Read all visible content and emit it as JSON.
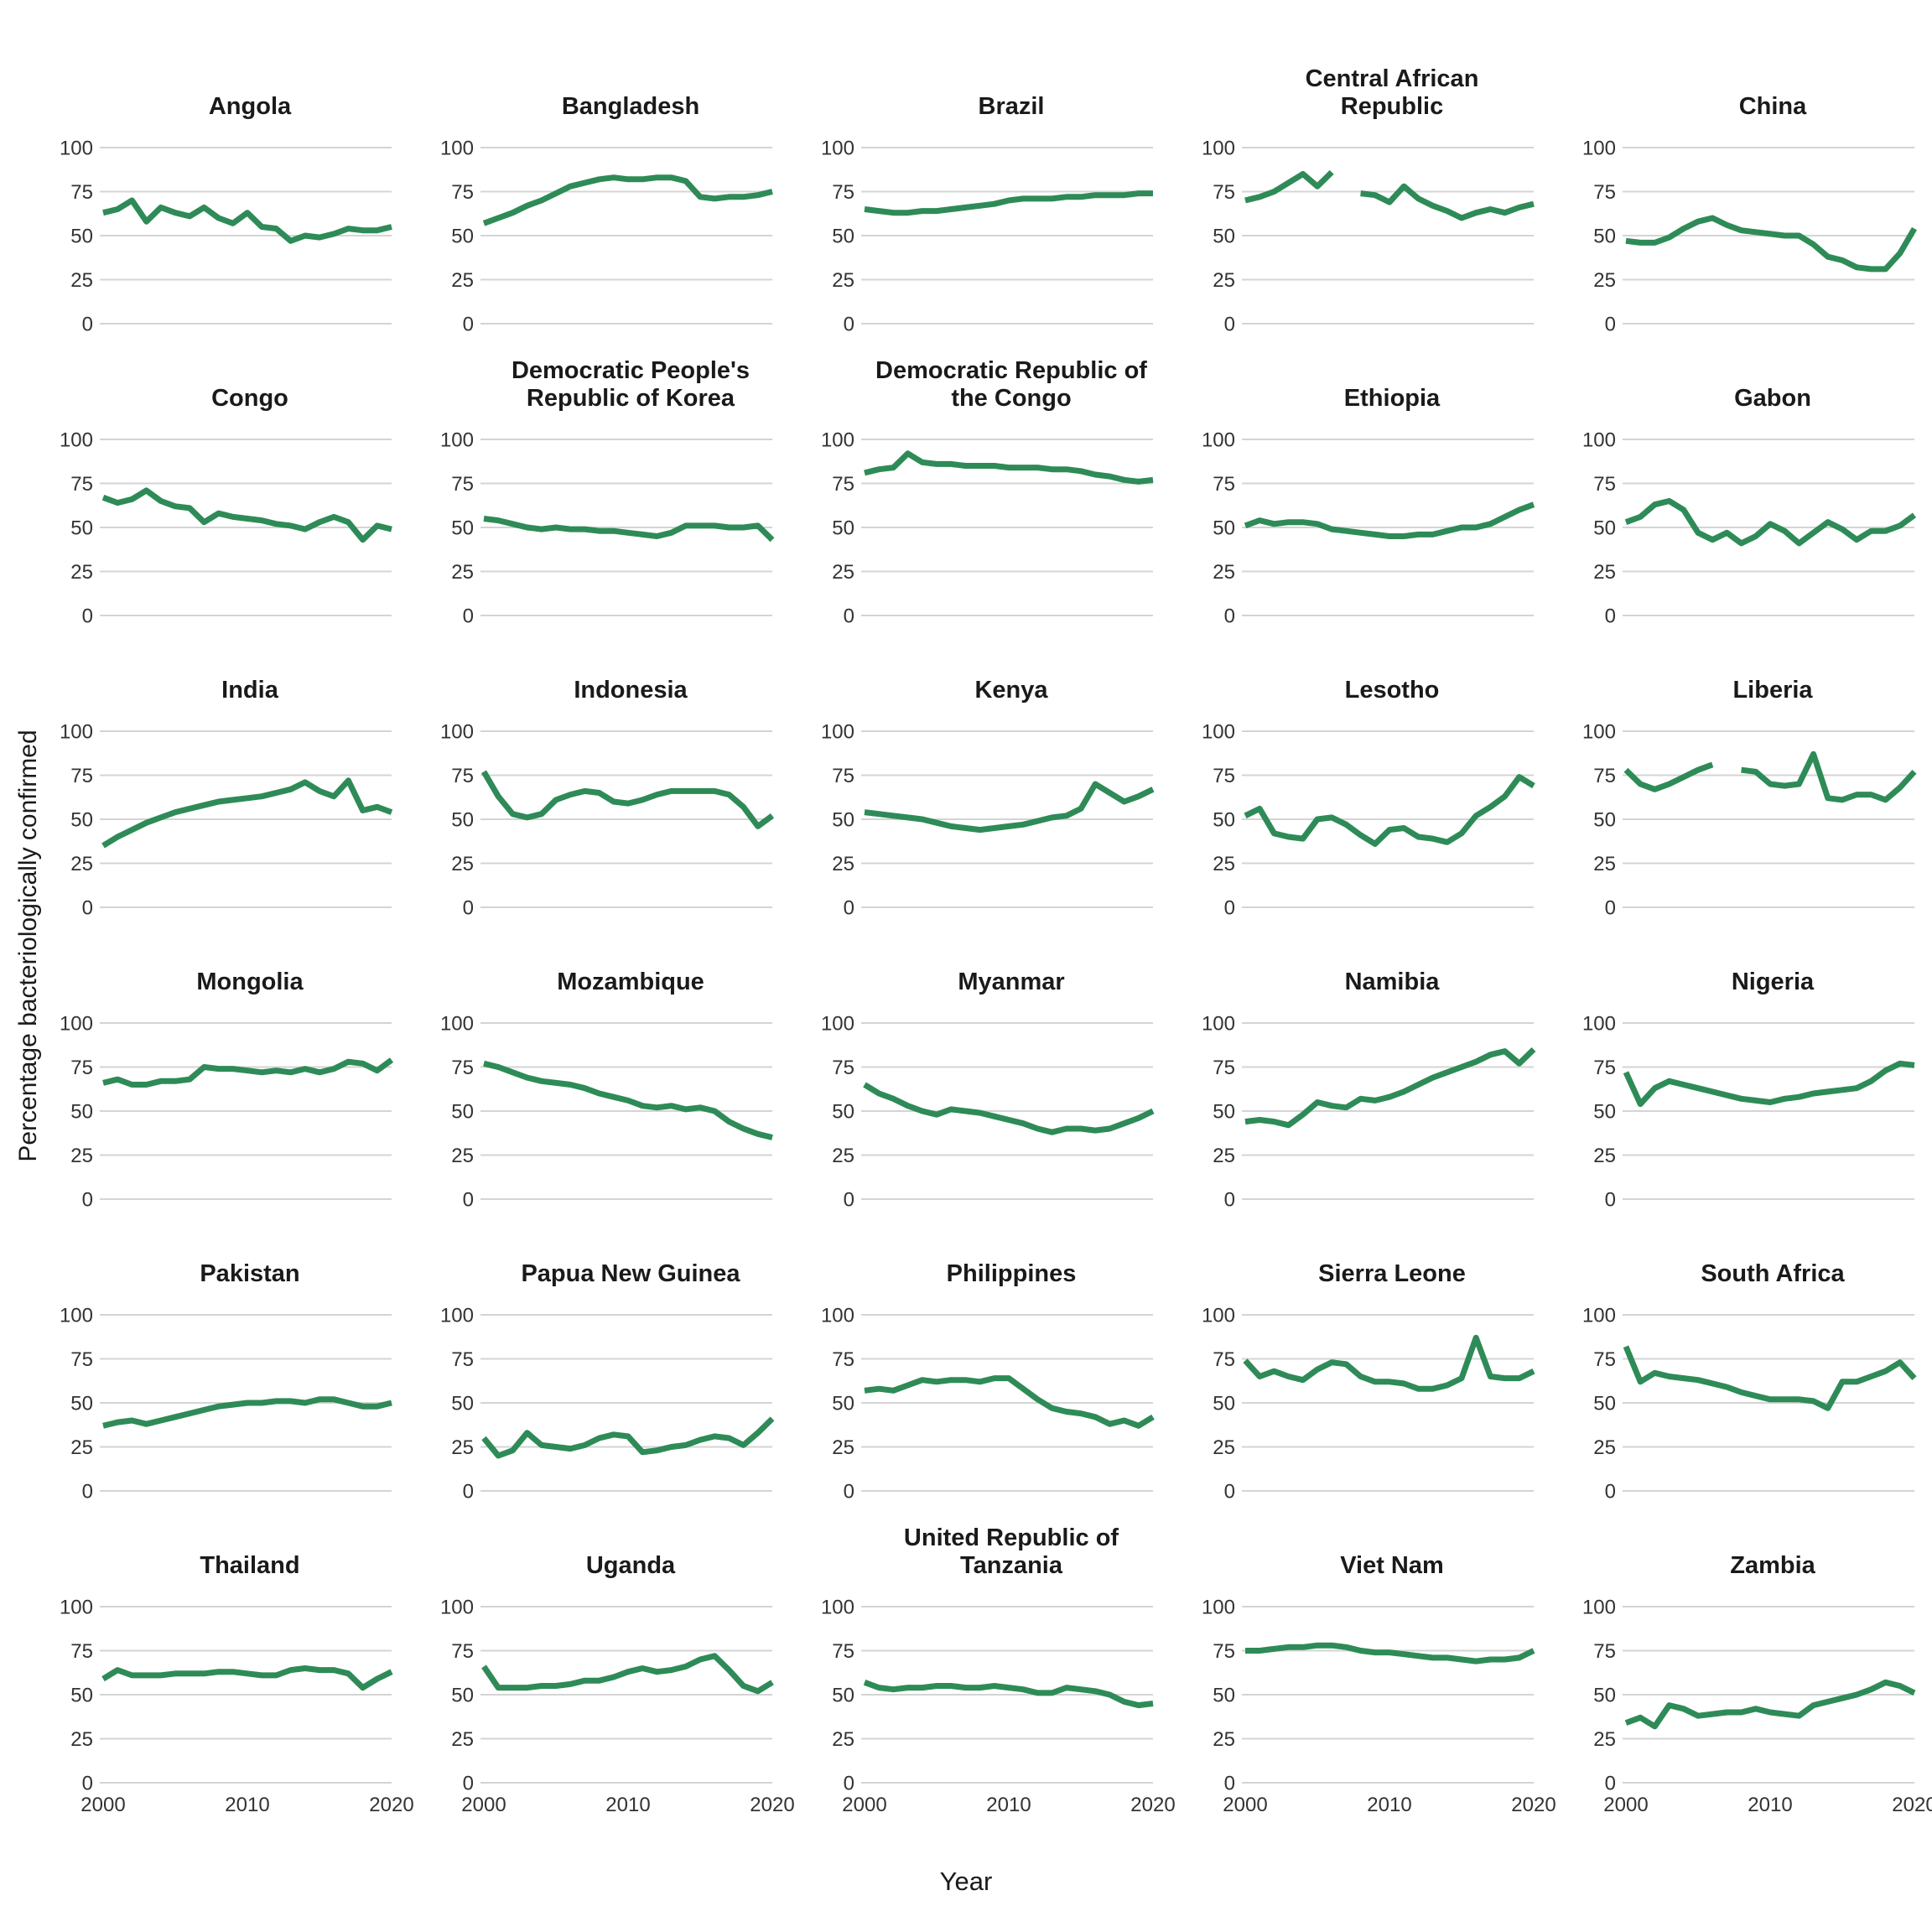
{
  "chart_data": {
    "type": "line",
    "title": "",
    "xlabel": "Year",
    "ylabel": "Percentage bacteriologically confirmed",
    "x": [
      2000,
      2001,
      2002,
      2003,
      2004,
      2005,
      2006,
      2007,
      2008,
      2009,
      2010,
      2011,
      2012,
      2013,
      2014,
      2015,
      2016,
      2017,
      2018,
      2019,
      2020
    ],
    "x_tick_labels": [
      "2000",
      "2010",
      "2020"
    ],
    "x_tick_years": [
      2000,
      2010,
      2020
    ],
    "y_tick_labels": [
      "0",
      "25",
      "50",
      "75",
      "100"
    ],
    "y_ticks": [
      0,
      25,
      50,
      75,
      100
    ],
    "ylim": [
      0,
      100
    ],
    "grid": "horizontal-only",
    "legend": "none",
    "line_color": "#2e8b57",
    "gridline_color": "#d4d4d4",
    "layout": {
      "nrow": 6,
      "ncol": 5
    },
    "facets": [
      {
        "name": "Angola",
        "values": [
          63,
          65,
          70,
          58,
          66,
          63,
          61,
          66,
          60,
          57,
          63,
          55,
          54,
          47,
          50,
          49,
          51,
          54,
          53,
          53,
          55
        ]
      },
      {
        "name": "Bangladesh",
        "values": [
          57,
          60,
          63,
          67,
          70,
          74,
          78,
          80,
          82,
          83,
          82,
          82,
          83,
          83,
          81,
          72,
          71,
          72,
          72,
          73,
          75
        ]
      },
      {
        "name": "Brazil",
        "values": [
          65,
          64,
          63,
          63,
          64,
          64,
          65,
          66,
          67,
          68,
          70,
          71,
          71,
          71,
          72,
          72,
          73,
          73,
          73,
          74,
          74
        ]
      },
      {
        "name": "Central African Republic",
        "values": [
          70,
          72,
          75,
          80,
          85,
          78,
          86,
          null,
          74,
          73,
          69,
          78,
          71,
          67,
          64,
          60,
          63,
          65,
          63,
          66,
          68
        ]
      },
      {
        "name": "China",
        "values": [
          47,
          46,
          46,
          49,
          54,
          58,
          60,
          56,
          53,
          52,
          51,
          50,
          50,
          45,
          38,
          36,
          32,
          31,
          31,
          40,
          54
        ]
      },
      {
        "name": "Congo",
        "values": [
          67,
          64,
          66,
          71,
          65,
          62,
          61,
          53,
          58,
          56,
          55,
          54,
          52,
          51,
          49,
          53,
          56,
          53,
          43,
          51,
          49
        ]
      },
      {
        "name": "Democratic People's Republic of Korea",
        "values": [
          55,
          54,
          52,
          50,
          49,
          50,
          49,
          49,
          48,
          48,
          47,
          46,
          45,
          47,
          51,
          51,
          51,
          50,
          50,
          51,
          43
        ]
      },
      {
        "name": "Democratic Republic of the Congo",
        "values": [
          81,
          83,
          84,
          92,
          87,
          86,
          86,
          85,
          85,
          85,
          84,
          84,
          84,
          83,
          83,
          82,
          80,
          79,
          77,
          76,
          77
        ]
      },
      {
        "name": "Ethiopia",
        "values": [
          51,
          54,
          52,
          53,
          53,
          52,
          49,
          48,
          47,
          46,
          45,
          45,
          46,
          46,
          48,
          50,
          50,
          52,
          56,
          60,
          63
        ]
      },
      {
        "name": "Gabon",
        "values": [
          53,
          56,
          63,
          65,
          60,
          47,
          43,
          47,
          41,
          45,
          52,
          48,
          41,
          47,
          53,
          49,
          43,
          48,
          48,
          51,
          57
        ]
      },
      {
        "name": "India",
        "values": [
          35,
          40,
          44,
          48,
          51,
          54,
          56,
          58,
          60,
          61,
          62,
          63,
          65,
          67,
          71,
          66,
          63,
          72,
          55,
          57,
          54
        ]
      },
      {
        "name": "Indonesia",
        "values": [
          77,
          63,
          53,
          51,
          53,
          61,
          64,
          66,
          65,
          60,
          59,
          61,
          64,
          66,
          66,
          66,
          66,
          64,
          57,
          46,
          52
        ]
      },
      {
        "name": "Kenya",
        "values": [
          54,
          53,
          52,
          51,
          50,
          48,
          46,
          45,
          44,
          45,
          46,
          47,
          49,
          51,
          52,
          56,
          70,
          65,
          60,
          63,
          67
        ]
      },
      {
        "name": "Lesotho",
        "values": [
          52,
          56,
          42,
          40,
          39,
          50,
          51,
          47,
          41,
          36,
          44,
          45,
          40,
          39,
          37,
          42,
          52,
          57,
          63,
          74,
          69
        ]
      },
      {
        "name": "Liberia",
        "values": [
          78,
          70,
          67,
          70,
          74,
          78,
          81,
          null,
          78,
          77,
          70,
          69,
          70,
          87,
          62,
          61,
          64,
          64,
          61,
          68,
          77
        ]
      },
      {
        "name": "Mongolia",
        "values": [
          66,
          68,
          65,
          65,
          67,
          67,
          68,
          75,
          74,
          74,
          73,
          72,
          73,
          72,
          74,
          72,
          74,
          78,
          77,
          73,
          79
        ]
      },
      {
        "name": "Mozambique",
        "values": [
          77,
          75,
          72,
          69,
          67,
          66,
          65,
          63,
          60,
          58,
          56,
          53,
          52,
          53,
          51,
          52,
          50,
          44,
          40,
          37,
          35
        ]
      },
      {
        "name": "Myanmar",
        "values": [
          65,
          60,
          57,
          53,
          50,
          48,
          51,
          50,
          49,
          47,
          45,
          43,
          40,
          38,
          40,
          40,
          39,
          40,
          43,
          46,
          50
        ]
      },
      {
        "name": "Namibia",
        "values": [
          44,
          45,
          44,
          42,
          48,
          55,
          53,
          52,
          57,
          56,
          58,
          61,
          65,
          69,
          72,
          75,
          78,
          82,
          84,
          77,
          85
        ]
      },
      {
        "name": "Nigeria",
        "values": [
          72,
          54,
          63,
          67,
          65,
          63,
          61,
          59,
          57,
          56,
          55,
          57,
          58,
          60,
          61,
          62,
          63,
          67,
          73,
          77,
          76
        ]
      },
      {
        "name": "Pakistan",
        "values": [
          37,
          39,
          40,
          38,
          40,
          42,
          44,
          46,
          48,
          49,
          50,
          50,
          51,
          51,
          50,
          52,
          52,
          50,
          48,
          48,
          50
        ]
      },
      {
        "name": "Papua New Guinea",
        "values": [
          30,
          20,
          23,
          33,
          26,
          25,
          24,
          26,
          30,
          32,
          31,
          22,
          23,
          25,
          26,
          29,
          31,
          30,
          26,
          33,
          41
        ]
      },
      {
        "name": "Philippines",
        "values": [
          57,
          58,
          57,
          60,
          63,
          62,
          63,
          63,
          62,
          64,
          64,
          58,
          52,
          47,
          45,
          44,
          42,
          38,
          40,
          37,
          42
        ]
      },
      {
        "name": "Sierra Leone",
        "values": [
          74,
          65,
          68,
          65,
          63,
          69,
          73,
          72,
          65,
          62,
          62,
          61,
          58,
          58,
          60,
          64,
          87,
          65,
          64,
          64,
          68
        ]
      },
      {
        "name": "South Africa",
        "values": [
          82,
          62,
          67,
          65,
          64,
          63,
          61,
          59,
          56,
          54,
          52,
          52,
          52,
          51,
          47,
          62,
          62,
          65,
          68,
          73,
          64
        ]
      },
      {
        "name": "Thailand",
        "values": [
          59,
          64,
          61,
          61,
          61,
          62,
          62,
          62,
          63,
          63,
          62,
          61,
          61,
          64,
          65,
          64,
          64,
          62,
          54,
          59,
          63
        ]
      },
      {
        "name": "Uganda",
        "values": [
          66,
          54,
          54,
          54,
          55,
          55,
          56,
          58,
          58,
          60,
          63,
          65,
          63,
          64,
          66,
          70,
          72,
          64,
          55,
          52,
          57
        ]
      },
      {
        "name": "United Republic of Tanzania",
        "values": [
          57,
          54,
          53,
          54,
          54,
          55,
          55,
          54,
          54,
          55,
          54,
          53,
          51,
          51,
          54,
          53,
          52,
          50,
          46,
          44,
          45
        ]
      },
      {
        "name": "Viet Nam",
        "values": [
          75,
          75,
          76,
          77,
          77,
          78,
          78,
          77,
          75,
          74,
          74,
          73,
          72,
          71,
          71,
          70,
          69,
          70,
          70,
          71,
          75
        ]
      },
      {
        "name": "Zambia",
        "values": [
          34,
          37,
          32,
          44,
          42,
          38,
          39,
          40,
          40,
          42,
          40,
          39,
          38,
          44,
          46,
          48,
          50,
          53,
          57,
          55,
          51
        ]
      }
    ]
  }
}
